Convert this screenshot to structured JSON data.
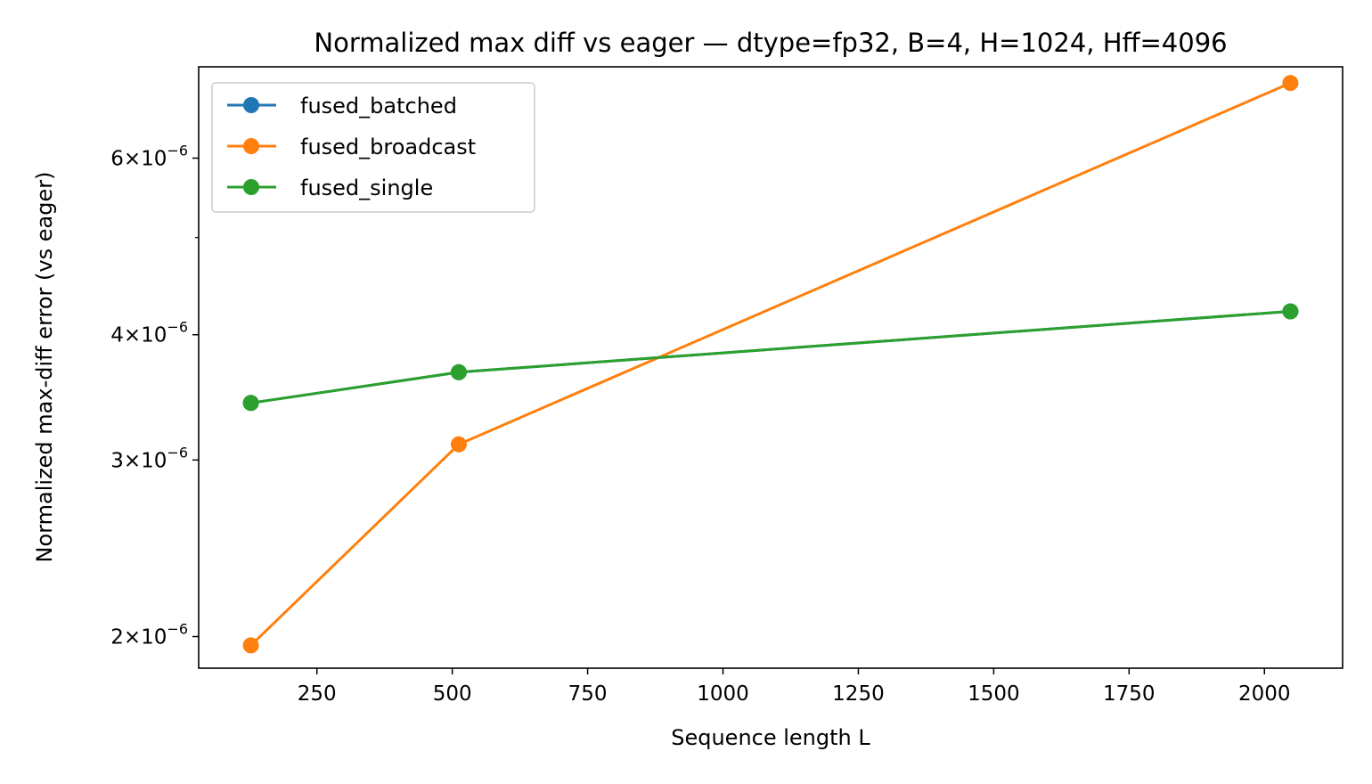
{
  "chart_data": {
    "type": "line",
    "title": "Normalized max diff vs eager — dtype=fp32, B=4, H=1024, Hff=4096",
    "xlabel": "Sequence length L",
    "ylabel": "Normalized max-diff error (vs eager)",
    "y_scale": "log",
    "xlim": [
      31.6,
      2144.4
    ],
    "ylim": [
      1.86e-06,
      7.4e-06
    ],
    "x_ticks": [
      {
        "value": 250,
        "label": "250"
      },
      {
        "value": 500,
        "label": "500"
      },
      {
        "value": 750,
        "label": "750"
      },
      {
        "value": 1000,
        "label": "1000"
      },
      {
        "value": 1250,
        "label": "1250"
      },
      {
        "value": 1500,
        "label": "1500"
      },
      {
        "value": 1750,
        "label": "1750"
      },
      {
        "value": 2000,
        "label": "2000"
      }
    ],
    "y_major_ticks": [
      {
        "value": 2e-06,
        "mantissa": "2",
        "exponent": "−6"
      },
      {
        "value": 3e-06,
        "mantissa": "3",
        "exponent": "−6"
      },
      {
        "value": 4e-06,
        "mantissa": "4",
        "exponent": "−6"
      },
      {
        "value": 6e-06,
        "mantissa": "6",
        "exponent": "−6"
      }
    ],
    "y_minor_ticks": [
      5e-06
    ],
    "x": [
      128,
      512,
      2048
    ],
    "series": [
      {
        "name": "fused_batched",
        "color": "#1f77b4",
        "values": [
          3.42e-06,
          3.67e-06,
          4.22e-06
        ]
      },
      {
        "name": "fused_broadcast",
        "color": "#ff7f0e",
        "values": [
          1.96e-06,
          3.11e-06,
          7.13e-06
        ]
      },
      {
        "name": "fused_single",
        "color": "#2ca02c",
        "values": [
          3.42e-06,
          3.67e-06,
          4.22e-06
        ]
      }
    ],
    "legend_position": "top-left",
    "grid": false
  }
}
